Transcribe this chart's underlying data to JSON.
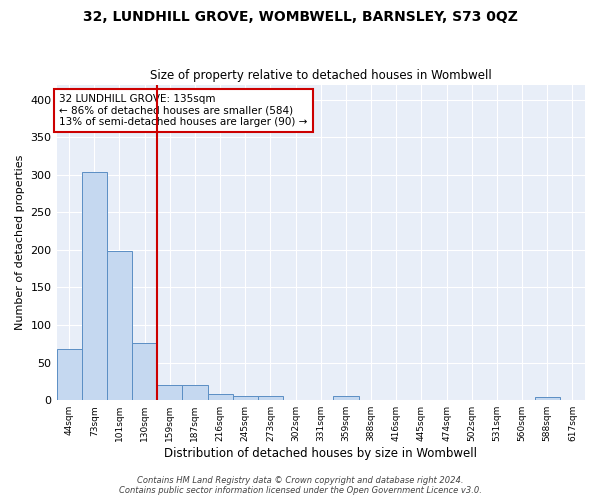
{
  "title": "32, LUNDHILL GROVE, WOMBWELL, BARNSLEY, S73 0QZ",
  "subtitle": "Size of property relative to detached houses in Wombwell",
  "xlabel": "Distribution of detached houses by size in Wombwell",
  "ylabel": "Number of detached properties",
  "bar_labels": [
    "44sqm",
    "73sqm",
    "101sqm",
    "130sqm",
    "159sqm",
    "187sqm",
    "216sqm",
    "245sqm",
    "273sqm",
    "302sqm",
    "331sqm",
    "359sqm",
    "388sqm",
    "416sqm",
    "445sqm",
    "474sqm",
    "502sqm",
    "531sqm",
    "560sqm",
    "588sqm",
    "617sqm"
  ],
  "bar_values": [
    68,
    304,
    199,
    76,
    20,
    20,
    8,
    5,
    5,
    0,
    0,
    5,
    0,
    0,
    0,
    0,
    0,
    0,
    0,
    4,
    0
  ],
  "bar_color": "#c5d8f0",
  "bar_edge_color": "#5b8ec4",
  "background_color": "#e8eef8",
  "grid_color": "#ffffff",
  "vline_x": 3.5,
  "vline_color": "#cc0000",
  "annotation_text": "32 LUNDHILL GROVE: 135sqm\n← 86% of detached houses are smaller (584)\n13% of semi-detached houses are larger (90) →",
  "annotation_box_color": "#ffffff",
  "annotation_box_edge": "#cc0000",
  "footnote": "Contains HM Land Registry data © Crown copyright and database right 2024.\nContains public sector information licensed under the Open Government Licence v3.0.",
  "ylim": [
    0,
    420
  ],
  "yticks": [
    0,
    50,
    100,
    150,
    200,
    250,
    300,
    350,
    400
  ],
  "fig_width": 6.0,
  "fig_height": 5.0,
  "dpi": 100
}
